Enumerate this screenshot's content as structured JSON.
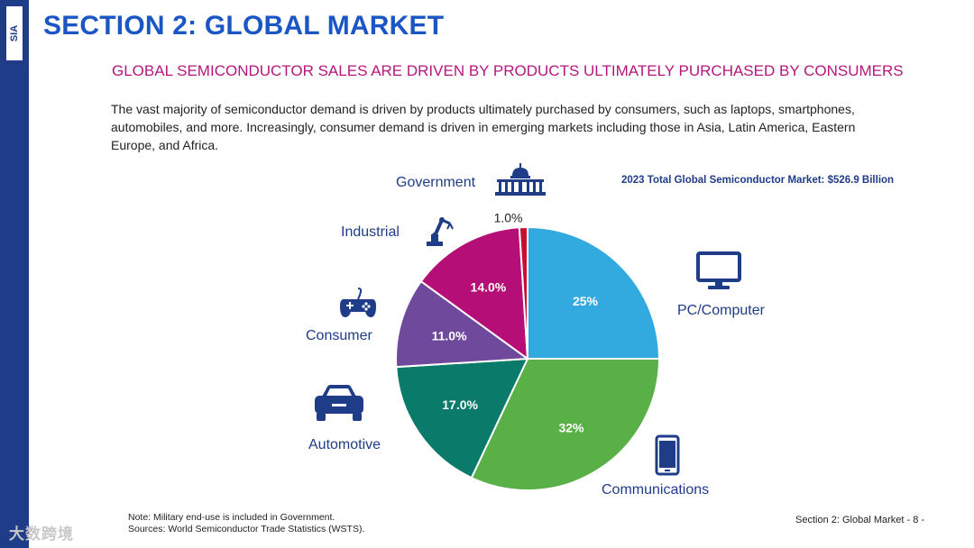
{
  "brand": {
    "logo_text": "SIA"
  },
  "header": {
    "title": "SECTION 2: GLOBAL MARKET",
    "subtitle": "GLOBAL SEMICONDUCTOR SALES ARE DRIVEN BY PRODUCTS ULTIMATELY PURCHASED BY CONSUMERS"
  },
  "body_text": "The vast majority of semiconductor demand is driven by products ultimately purchased by consumers, such as laptops, smartphones, automobiles, and more. Increasingly, consumer demand is driven in emerging markets including those in Asia, Latin America, Eastern Europe, and Africa.",
  "colors": {
    "title": "#1a56c4",
    "subtitle": "#b5177c",
    "sidebar": "#1f3c88",
    "icon": "#1f3c88"
  },
  "chart_data": {
    "type": "pie",
    "title": "2023 Total Global Semiconductor Market: $526.9 Billion",
    "start_angle_deg": 0,
    "direction": "clockwise",
    "slices": [
      {
        "name": "PC/Computer",
        "value": 25,
        "label": "25%",
        "color": "#33aadf",
        "icon": "monitor-icon"
      },
      {
        "name": "Communications",
        "value": 32,
        "label": "32%",
        "color": "#58b047",
        "icon": "smartphone-icon"
      },
      {
        "name": "Automotive",
        "value": 17,
        "label": "17.0%",
        "color": "#0a7a6a",
        "icon": "car-icon"
      },
      {
        "name": "Consumer",
        "value": 11,
        "label": "11.0%",
        "color": "#6f4a9c",
        "icon": "gamepad-icon"
      },
      {
        "name": "Industrial",
        "value": 14,
        "label": "14.0%",
        "color": "#b50e77",
        "icon": "robot-arm-icon"
      },
      {
        "name": "Government",
        "value": 1,
        "label": "1.0%",
        "color": "#c8102e",
        "icon": "capitol-icon"
      }
    ]
  },
  "note": {
    "line1": "Note: Military end-use is included in Government.",
    "line2": "Sources: World Semiconductor Trade Statistics (WSTS)."
  },
  "footer": {
    "page_label": "Section 2: Global Market - 8 -"
  },
  "watermark": "大数跨境"
}
